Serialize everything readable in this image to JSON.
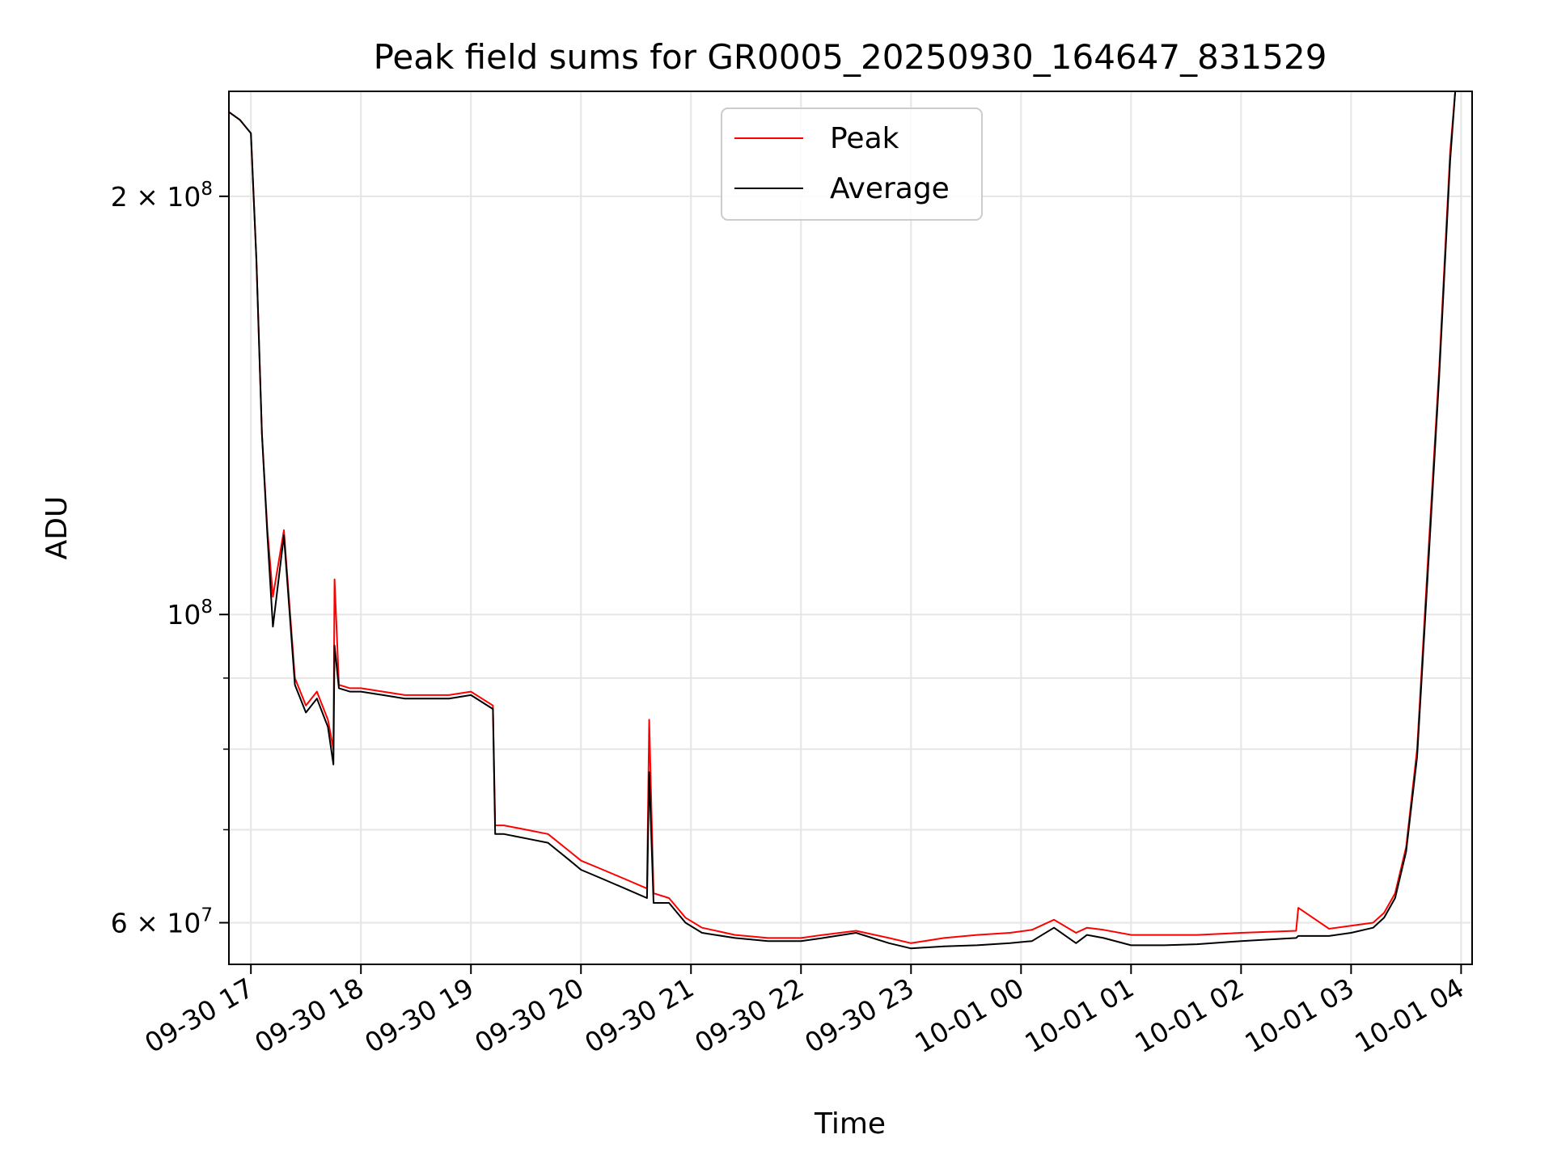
{
  "chart_data": {
    "type": "line",
    "title": "Peak field sums for GR0005_20250930_164647_831529",
    "xlabel": "Time",
    "ylabel": "ADU",
    "y_scale": "log",
    "ylim": [
      56000000,
      238000000
    ],
    "xlim_hours": [
      -0.2,
      11.1
    ],
    "x_ticks": [
      {
        "label": "09-30 17",
        "hour": 0
      },
      {
        "label": "09-30 18",
        "hour": 1
      },
      {
        "label": "09-30 19",
        "hour": 2
      },
      {
        "label": "09-30 20",
        "hour": 3
      },
      {
        "label": "09-30 21",
        "hour": 4
      },
      {
        "label": "09-30 22",
        "hour": 5
      },
      {
        "label": "09-30 23",
        "hour": 6
      },
      {
        "label": "10-01 00",
        "hour": 7
      },
      {
        "label": "10-01 01",
        "hour": 8
      },
      {
        "label": "10-01 02",
        "hour": 9
      },
      {
        "label": "10-01 03",
        "hour": 10
      },
      {
        "label": "10-01 04",
        "hour": 11
      }
    ],
    "y_major_ticks": [
      {
        "label_base": "2 × 10",
        "label_exp": "8",
        "value": 200000000
      },
      {
        "label_base": "10",
        "label_exp": "8",
        "value": 100000000
      },
      {
        "label_base": "6 × 10",
        "label_exp": "7",
        "value": 60000000
      }
    ],
    "y_minor_ticks": [
      70000000,
      80000000,
      90000000
    ],
    "grid": true,
    "legend": {
      "position": "top-center",
      "entries": [
        {
          "name": "Peak",
          "color": "#ff0000"
        },
        {
          "name": "Average",
          "color": "#000000"
        }
      ]
    },
    "series": [
      {
        "name": "Peak",
        "color": "#ff0000",
        "x": [
          -0.2,
          -0.1,
          0.0,
          0.05,
          0.1,
          0.15,
          0.2,
          0.3,
          0.4,
          0.5,
          0.6,
          0.7,
          0.75,
          0.76,
          0.8,
          0.9,
          1.0,
          1.2,
          1.4,
          1.6,
          1.8,
          2.0,
          2.2,
          2.22,
          2.3,
          2.5,
          2.7,
          2.9,
          3.0,
          3.2,
          3.4,
          3.6,
          3.62,
          3.66,
          3.8,
          3.95,
          4.1,
          4.4,
          4.7,
          5.0,
          5.2,
          5.5,
          5.8,
          6.0,
          6.3,
          6.6,
          6.9,
          7.1,
          7.3,
          7.5,
          7.6,
          7.75,
          8.0,
          8.3,
          8.6,
          9.0,
          9.5,
          9.52,
          9.8,
          10.0,
          10.2,
          10.3,
          10.4,
          10.5,
          10.6,
          10.7,
          10.8,
          10.9,
          10.95
        ],
        "y": [
          230000000,
          227000000,
          222000000,
          180000000,
          135000000,
          115000000,
          103000000,
          115000000,
          90000000,
          86000000,
          88000000,
          84000000,
          80000000,
          106000000,
          89000000,
          88500000,
          88500000,
          88000000,
          87500000,
          87500000,
          87500000,
          88000000,
          86000000,
          70500000,
          70500000,
          70000000,
          69500000,
          67500000,
          66500000,
          65500000,
          64500000,
          63500000,
          84000000,
          63000000,
          62500000,
          60500000,
          59500000,
          58800000,
          58500000,
          58500000,
          58800000,
          59200000,
          58500000,
          58000000,
          58500000,
          58800000,
          59000000,
          59300000,
          60300000,
          59000000,
          59500000,
          59300000,
          58800000,
          58800000,
          58800000,
          59000000,
          59200000,
          61500000,
          59400000,
          59700000,
          60000000,
          61000000,
          63000000,
          68000000,
          80000000,
          110000000,
          150000000,
          215000000,
          240000000
        ]
      },
      {
        "name": "Average",
        "color": "#000000",
        "x": [
          -0.2,
          -0.1,
          0.0,
          0.05,
          0.1,
          0.15,
          0.2,
          0.3,
          0.4,
          0.5,
          0.6,
          0.7,
          0.75,
          0.76,
          0.8,
          0.9,
          1.0,
          1.2,
          1.4,
          1.6,
          1.8,
          2.0,
          2.2,
          2.22,
          2.3,
          2.5,
          2.7,
          2.9,
          3.0,
          3.2,
          3.4,
          3.6,
          3.62,
          3.66,
          3.8,
          3.95,
          4.1,
          4.4,
          4.7,
          5.0,
          5.2,
          5.5,
          5.8,
          6.0,
          6.3,
          6.6,
          6.9,
          7.1,
          7.3,
          7.5,
          7.6,
          7.75,
          8.0,
          8.3,
          8.6,
          9.0,
          9.5,
          9.52,
          9.8,
          10.0,
          10.2,
          10.3,
          10.4,
          10.5,
          10.6,
          10.7,
          10.8,
          10.9,
          10.95
        ],
        "y": [
          230000000,
          227000000,
          222000000,
          180000000,
          135000000,
          114000000,
          98000000,
          114000000,
          89000000,
          85000000,
          87000000,
          83000000,
          78000000,
          95000000,
          88500000,
          88000000,
          88000000,
          87500000,
          87000000,
          87000000,
          87000000,
          87500000,
          85500000,
          69500000,
          69500000,
          69000000,
          68500000,
          66500000,
          65500000,
          64500000,
          63500000,
          62500000,
          77000000,
          62000000,
          62000000,
          60000000,
          59000000,
          58500000,
          58200000,
          58200000,
          58500000,
          59000000,
          58000000,
          57500000,
          57700000,
          57800000,
          58000000,
          58200000,
          59500000,
          58000000,
          58800000,
          58500000,
          57800000,
          57800000,
          57900000,
          58200000,
          58500000,
          58700000,
          58700000,
          59000000,
          59500000,
          60500000,
          62500000,
          67500000,
          79000000,
          108000000,
          148000000,
          212000000,
          240000000
        ]
      }
    ]
  }
}
